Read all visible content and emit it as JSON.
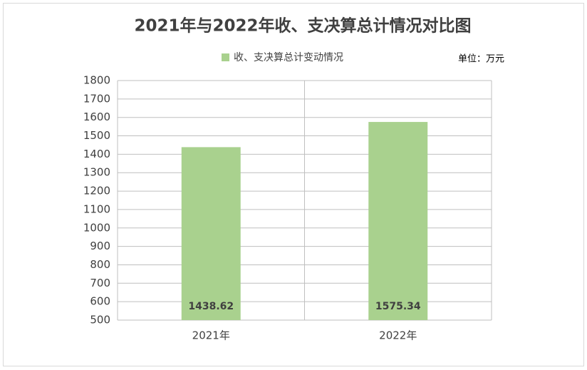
{
  "chart_data": {
    "type": "bar",
    "title": "2021年与2022年收、支决算总计情况对比图",
    "unit_label": "单位：万元",
    "legend_label": "收、支决算总计变动情况",
    "categories": [
      "2021年",
      "2022年"
    ],
    "series": [
      {
        "name": "收、支决算总计变动情况",
        "color": "#a9d18e",
        "values": [
          1438.62,
          1575.34
        ]
      }
    ],
    "ylim": [
      500,
      1800
    ],
    "yticks": [
      500,
      600,
      700,
      800,
      900,
      1000,
      1100,
      1200,
      1300,
      1400,
      1500,
      1600,
      1700,
      1800
    ],
    "grid": true
  }
}
